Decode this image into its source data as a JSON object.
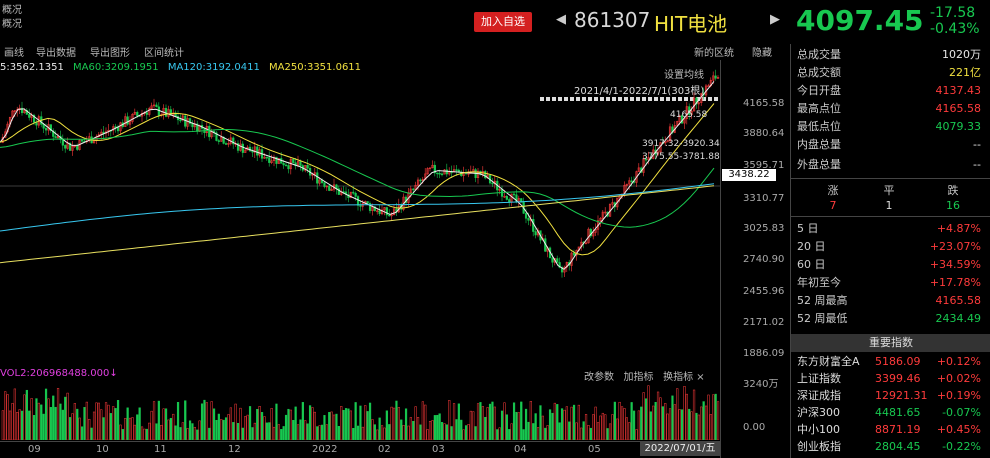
{
  "side_labels": [
    "概况",
    "概况"
  ],
  "header": {
    "watch_label": "加入自选",
    "code": "861307",
    "name": "HIT电池",
    "price": "4097.45",
    "change": "-17.58",
    "change_pct": "-0.43%",
    "prev_arrow": "◀",
    "next_arrow": "▶"
  },
  "toolbar": {
    "items": [
      "画线",
      "导出数据",
      "导出图形",
      "区间统计"
    ],
    "right_items": [
      "新的区统",
      "隐藏"
    ]
  },
  "ma": {
    "ma5": "5:3562.1351",
    "ma60": "MA60:3209.1951",
    "ma120": "MA120:3192.0411",
    "ma250": "MA250:3351.0611"
  },
  "chart_controls": {
    "settings": "设置均线",
    "range": "2021/4/1-2022/7/1(303根)"
  },
  "annotations": {
    "high": "4165.58",
    "a1": "3917.32-3920.34",
    "a2": "3775.55-3781.88"
  },
  "yaxis": {
    "ticks": [
      "4165.58",
      "3880.64",
      "3595.71",
      "3310.77",
      "3025.83",
      "2740.90",
      "2455.96",
      "2171.02",
      "1886.09"
    ],
    "current": "3438.22",
    "vol_ticks": [
      "3240万",
      "0.00"
    ]
  },
  "volume": {
    "label": "VOL2:206968488.000↓",
    "controls": [
      "改参数",
      "加指标",
      "换指标"
    ]
  },
  "xaxis": {
    "ticks": [
      "09",
      "10",
      "11",
      "12",
      "2022",
      "02",
      "03",
      "04",
      "05"
    ],
    "date_tag": "2022/07/01/五"
  },
  "panel": {
    "stats": [
      {
        "k": "总成交量",
        "v": "1020万",
        "c": "#e8e8e8"
      },
      {
        "k": "总成交额",
        "v": "221亿",
        "c": "#f0e040"
      },
      {
        "k": "今日开盘",
        "v": "4137.43",
        "c": "#ff3b3b"
      },
      {
        "k": "最高点位",
        "v": "4165.58",
        "c": "#ff3b3b"
      },
      {
        "k": "最低点位",
        "v": "4079.33",
        "c": "#18c850"
      },
      {
        "k": "内盘总量",
        "v": "--",
        "c": "#e8e8e8"
      },
      {
        "k": "外盘总量",
        "v": "--",
        "c": "#e8e8e8"
      }
    ],
    "ad": {
      "up_label": "涨",
      "flat_label": "平",
      "down_label": "跌",
      "up": "7",
      "flat": "1",
      "down": "16"
    },
    "periods": [
      {
        "k": "5 日",
        "v": "+4.87%",
        "c": "#ff3b3b"
      },
      {
        "k": "20 日",
        "v": "+23.07%",
        "c": "#ff3b3b"
      },
      {
        "k": "60 日",
        "v": "+34.59%",
        "c": "#ff3b3b"
      },
      {
        "k": "年初至今",
        "v": "+17.78%",
        "c": "#ff3b3b"
      },
      {
        "k": "52 周最高",
        "v": "4165.58",
        "c": "#ff3b3b"
      },
      {
        "k": "52 周最低",
        "v": "2434.49",
        "c": "#18c850"
      }
    ],
    "index_title": "重要指数",
    "indices": [
      {
        "k": "东方财富全A",
        "p": "5186.09",
        "c": "+0.12%",
        "col": "#ff3b3b"
      },
      {
        "k": "上证指数",
        "p": "3399.46",
        "c": "+0.02%",
        "col": "#ff3b3b"
      },
      {
        "k": "深证成指",
        "p": "12921.31",
        "c": "+0.19%",
        "col": "#ff3b3b"
      },
      {
        "k": "沪深300",
        "p": "4481.65",
        "c": "-0.07%",
        "col": "#18c850"
      },
      {
        "k": "中小100",
        "p": "8871.19",
        "c": "+0.45%",
        "col": "#ff3b3b"
      },
      {
        "k": "创业板指",
        "p": "2804.45",
        "c": "-0.22%",
        "col": "#18c850"
      }
    ]
  },
  "colors": {
    "up": "#ff3b3b",
    "down": "#18c850",
    "ma5": "#f0f0f0",
    "ma20": "#f0e040",
    "ma60": "#18c850",
    "ma120": "#38c8f0",
    "ma250": "#e8e060"
  }
}
